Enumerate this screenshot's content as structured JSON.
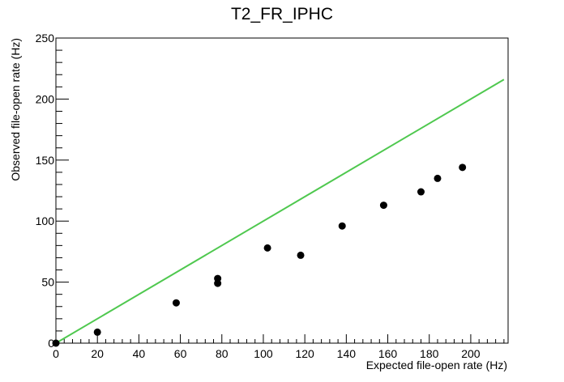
{
  "chart_data": {
    "type": "scatter",
    "title": "T2_FR_IPHC",
    "xlabel": "Expected file-open rate (Hz)",
    "ylabel": "Observed file-open rate (Hz)",
    "xlim": [
      0,
      218
    ],
    "ylim": [
      0,
      250
    ],
    "x_ticks": [
      0,
      20,
      40,
      60,
      80,
      100,
      120,
      140,
      160,
      180,
      200
    ],
    "y_ticks": [
      0,
      50,
      100,
      150,
      200,
      250
    ],
    "grid": false,
    "series": [
      {
        "type": "scatter",
        "color": "#000000",
        "points": [
          {
            "x": 0,
            "y": 0
          },
          {
            "x": 20,
            "y": 9
          },
          {
            "x": 58,
            "y": 33
          },
          {
            "x": 78,
            "y": 49
          },
          {
            "x": 78,
            "y": 53
          },
          {
            "x": 102,
            "y": 78
          },
          {
            "x": 118,
            "y": 72
          },
          {
            "x": 138,
            "y": 96
          },
          {
            "x": 158,
            "y": 113
          },
          {
            "x": 176,
            "y": 124
          },
          {
            "x": 184,
            "y": 135
          },
          {
            "x": 196,
            "y": 144
          }
        ]
      },
      {
        "type": "line",
        "color": "#4fc84f",
        "points": [
          {
            "x": 0,
            "y": 0
          },
          {
            "x": 216,
            "y": 216
          }
        ]
      }
    ]
  }
}
